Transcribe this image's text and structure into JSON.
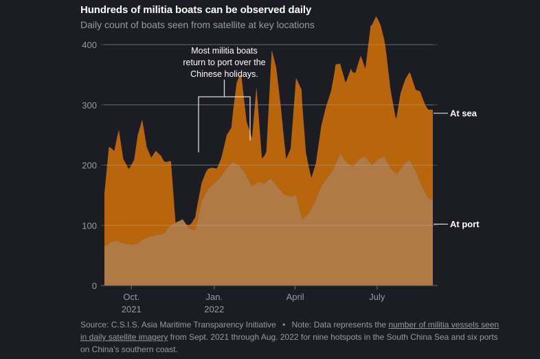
{
  "header": {
    "title": "Hundreds of militia boats can be observed daily",
    "subtitle": "Daily count of boats seen from satellite at key locations"
  },
  "annotation": {
    "lines": [
      "Most militia boats",
      "return to port over the",
      "Chinese holidays."
    ]
  },
  "footer": {
    "source": "Source: C.S.I.S. Asia Maritime Transparency Initiative",
    "separator": "•",
    "note_prefix": "Note: Data represents the",
    "note_link": "number of militia vessels seen in daily satellite imagery",
    "note_suffix": "from Sept. 2021 through Aug. 2022 for nine hotspots in the South China Sea and six ports on China’s southern coast."
  },
  "colors": {
    "background": "#1c1c24",
    "at_sea": "#b8650c",
    "at_port": "#b07a46",
    "grid": "#4a4a52",
    "text": "#9a9aa2",
    "label": "#ffffff"
  },
  "chart_data": {
    "type": "area",
    "stacked": true,
    "ylim": [
      0,
      400
    ],
    "yticks": [
      0,
      100,
      200,
      300,
      400
    ],
    "xticks": [
      {
        "date": "2021-10-01",
        "label": "Oct.",
        "sublabel": "2021"
      },
      {
        "date": "2022-01-01",
        "label": "Jan.",
        "sublabel": "2022"
      },
      {
        "date": "2022-04-01",
        "label": "April",
        "sublabel": ""
      },
      {
        "date": "2022-07-01",
        "label": "July",
        "sublabel": ""
      }
    ],
    "grid": true,
    "series": [
      {
        "name": "At port",
        "x": [
          "2021-09-01",
          "2021-09-08",
          "2021-09-15",
          "2021-09-22",
          "2021-10-01",
          "2021-10-08",
          "2021-10-15",
          "2021-10-22",
          "2021-10-29",
          "2021-11-06",
          "2021-11-13",
          "2021-11-20",
          "2021-11-27",
          "2021-12-04",
          "2021-12-11",
          "2021-12-18",
          "2021-12-25",
          "2022-01-01",
          "2022-01-08",
          "2022-01-15",
          "2022-01-22",
          "2022-01-29",
          "2022-02-05",
          "2022-02-12",
          "2022-02-19",
          "2022-02-26",
          "2022-03-05",
          "2022-03-12",
          "2022-03-19",
          "2022-03-26",
          "2022-04-02",
          "2022-04-09",
          "2022-04-16",
          "2022-04-23",
          "2022-04-30",
          "2022-05-07",
          "2022-05-14",
          "2022-05-21",
          "2022-05-28",
          "2022-06-04",
          "2022-06-11",
          "2022-06-18",
          "2022-06-25",
          "2022-07-02",
          "2022-07-09",
          "2022-07-16",
          "2022-07-23",
          "2022-07-30",
          "2022-08-06",
          "2022-08-13",
          "2022-08-20",
          "2022-08-27",
          "2022-09-01"
        ],
        "values": [
          65,
          72,
          75,
          70,
          68,
          70,
          78,
          82,
          84,
          86,
          100,
          105,
          110,
          95,
          92,
          140,
          160,
          170,
          180,
          195,
          205,
          200,
          185,
          165,
          172,
          170,
          178,
          165,
          152,
          148,
          150,
          110,
          120,
          140,
          165,
          180,
          195,
          220,
          205,
          198,
          210,
          215,
          200,
          210,
          215,
          195,
          185,
          200,
          210,
          190,
          165,
          145,
          142
        ]
      },
      {
        "name": "At sea",
        "x": [
          "2021-09-01",
          "2021-09-06",
          "2021-09-12",
          "2021-09-17",
          "2021-09-22",
          "2021-09-28",
          "2021-10-04",
          "2021-10-08",
          "2021-10-13",
          "2021-10-18",
          "2021-10-23",
          "2021-10-28",
          "2021-11-03",
          "2021-11-08",
          "2021-11-14",
          "2021-11-19",
          "2021-11-25",
          "2021-12-01",
          "2021-12-07",
          "2021-12-12",
          "2021-12-18",
          "2021-12-23",
          "2021-12-29",
          "2022-01-04",
          "2022-01-09",
          "2022-01-15",
          "2022-01-20",
          "2022-01-26",
          "2022-01-31",
          "2022-02-06",
          "2022-02-12",
          "2022-02-17",
          "2022-02-23",
          "2022-02-28",
          "2022-03-06",
          "2022-03-11",
          "2022-03-16",
          "2022-03-22",
          "2022-03-27",
          "2022-04-02",
          "2022-04-08",
          "2022-04-13",
          "2022-04-19",
          "2022-04-24",
          "2022-04-30",
          "2022-05-05",
          "2022-05-11",
          "2022-05-16",
          "2022-05-22",
          "2022-05-27",
          "2022-06-02",
          "2022-06-07",
          "2022-06-13",
          "2022-06-18",
          "2022-06-24",
          "2022-06-30",
          "2022-07-05",
          "2022-07-11",
          "2022-07-16",
          "2022-07-22",
          "2022-07-27",
          "2022-08-02",
          "2022-08-07",
          "2022-08-13",
          "2022-08-18",
          "2022-08-24",
          "2022-09-01"
        ],
        "values": [
          88,
          160,
          150,
          185,
          140,
          125,
          140,
          180,
          200,
          150,
          130,
          140,
          130,
          115,
          105,
          0,
          0,
          0,
          10,
          25,
          30,
          35,
          30,
          20,
          30,
          55,
          60,
          135,
          155,
          90,
          80,
          160,
          40,
          50,
          215,
          195,
          140,
          60,
          80,
          195,
          210,
          105,
          50,
          60,
          100,
          120,
          135,
          165,
          145,
          130,
          160,
          150,
          170,
          145,
          230,
          240,
          220,
          180,
          130,
          90,
          125,
          140,
          145,
          135,
          150,
          145,
          150
        ]
      }
    ],
    "labels": [
      {
        "series": "At sea",
        "text": "At sea"
      },
      {
        "series": "At port",
        "text": "At port"
      }
    ]
  }
}
